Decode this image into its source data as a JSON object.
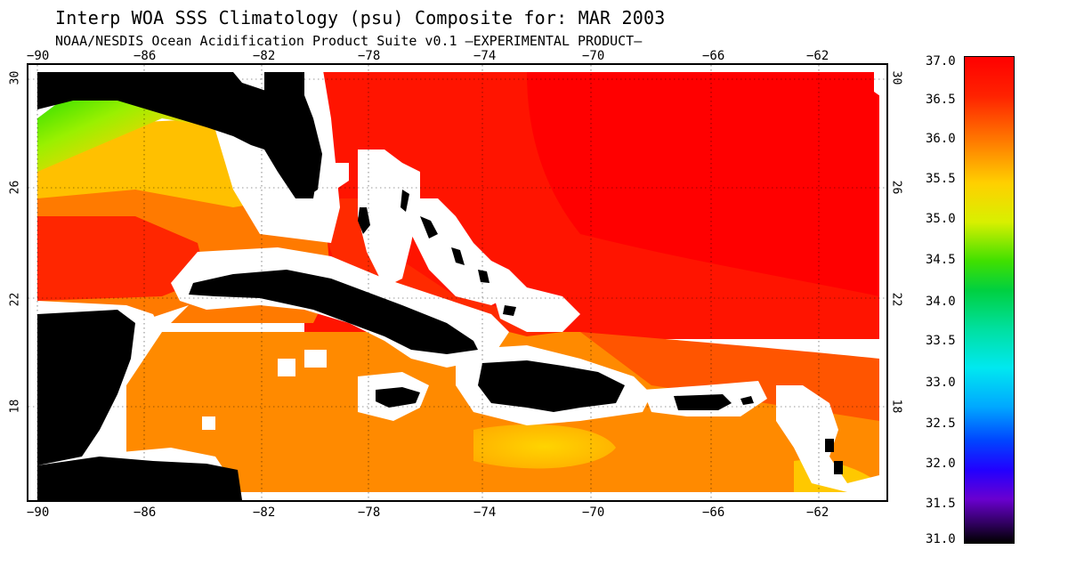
{
  "title": "Interp WOA SSS Climatology (psu) Composite for: MAR 2003",
  "subtitle": "NOAA/NESDIS Ocean Acidification Product Suite  v0.1 –EXPERIMENTAL PRODUCT–",
  "lon_ticks": [
    "−90",
    "−86",
    "−82",
    "−78",
    "−74",
    "−70",
    "−66",
    "−62"
  ],
  "lat_ticks": [
    "30",
    "26",
    "22",
    "18"
  ],
  "colorbar": {
    "labels": [
      "37.0",
      "36.5",
      "36.0",
      "35.5",
      "35.0",
      "34.5",
      "34.0",
      "33.5",
      "33.0",
      "32.5",
      "32.0",
      "31.5",
      "31.0"
    ],
    "min": 31.0,
    "max": 37.0
  },
  "colors": {
    "land": "#000000",
    "no_data": "#ffffff",
    "high": "#ff0000",
    "orange_red": "#ff3300",
    "orange": "#ff7700",
    "dark_orange": "#ff8a00",
    "yellow": "#ffd000",
    "green": "#22dd00"
  }
}
